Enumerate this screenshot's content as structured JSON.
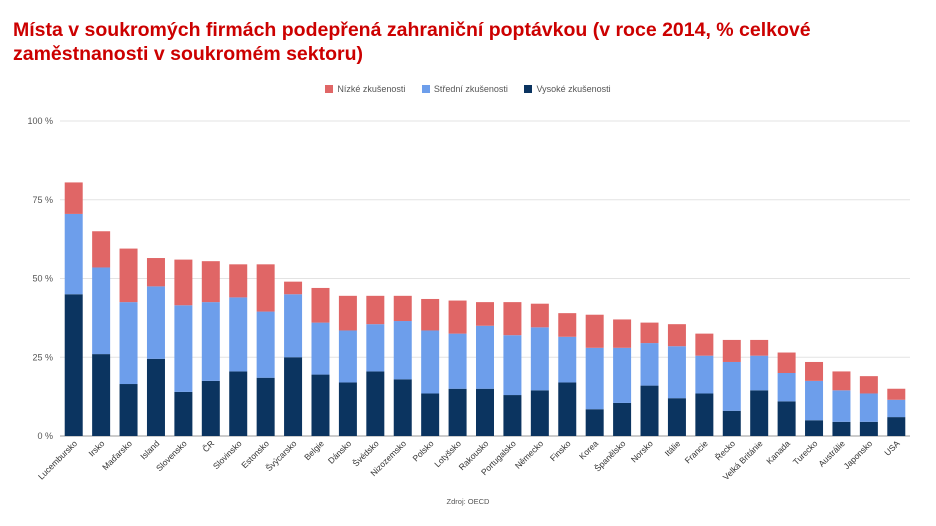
{
  "title": "Místa v soukromých firmách podepřená zahraniční poptávkou (v roce 2014, % celkové zaměstnanosti v soukromém sektoru)",
  "source": "Zdroj: OECD",
  "chart_data": {
    "type": "bar",
    "stacked": true,
    "ylim": [
      0,
      100
    ],
    "yticks": [
      "0 %",
      "25 %",
      "50 %",
      "75 %",
      "100 %"
    ],
    "ytick_values": [
      0,
      25,
      50,
      75,
      100
    ],
    "legend_position": "top",
    "grid": true,
    "categories": [
      "Lucembursko",
      "Irsko",
      "Maďarsko",
      "Island",
      "Slovensko",
      "ČR",
      "Slovinsko",
      "Estonsko",
      "Švýcarsko",
      "Belgie",
      "Dánsko",
      "Švédsko",
      "Nizozemsko",
      "Polsko",
      "Lotyšsko",
      "Rakousko",
      "Portugalsko",
      "Německo",
      "Finsko",
      "Korea",
      "Španělsko",
      "Norsko",
      "Itálie",
      "Francie",
      "Řecko",
      "Velká Británie",
      "Kanada",
      "Turecko",
      "Austrálie",
      "Japonsko",
      "USA"
    ],
    "series": [
      {
        "name": "Vysoké zkušenosti",
        "color": "#0b3460",
        "values": [
          45,
          26,
          16.5,
          24.5,
          14,
          17.5,
          20.5,
          18.5,
          25,
          19.5,
          17,
          20.5,
          18,
          13.5,
          15,
          15,
          13,
          14.5,
          17,
          8.5,
          10.5,
          16,
          12,
          13.5,
          8,
          14.5,
          11,
          5,
          4.5,
          4.5,
          6
        ]
      },
      {
        "name": "Střední zkušenosti",
        "color": "#6d9eeb",
        "values": [
          25.5,
          27.5,
          26,
          23,
          27.5,
          25,
          23.5,
          21,
          20,
          16.5,
          16.5,
          15,
          18.5,
          20,
          17.5,
          20,
          19,
          20,
          14.5,
          19.5,
          17.5,
          13.5,
          16.5,
          12,
          15.5,
          11,
          9,
          12.5,
          10,
          9,
          5.5
        ]
      },
      {
        "name": "Nízké zkušenosti",
        "color": "#e06666",
        "values": [
          10,
          11.5,
          17,
          9,
          14.5,
          13,
          10.5,
          15,
          4,
          11,
          11,
          9,
          8,
          10,
          10.5,
          7.5,
          10.5,
          7.5,
          7.5,
          10.5,
          9,
          6.5,
          7,
          7,
          7,
          5,
          6.5,
          6,
          6,
          5.5,
          3.5
        ]
      }
    ]
  }
}
